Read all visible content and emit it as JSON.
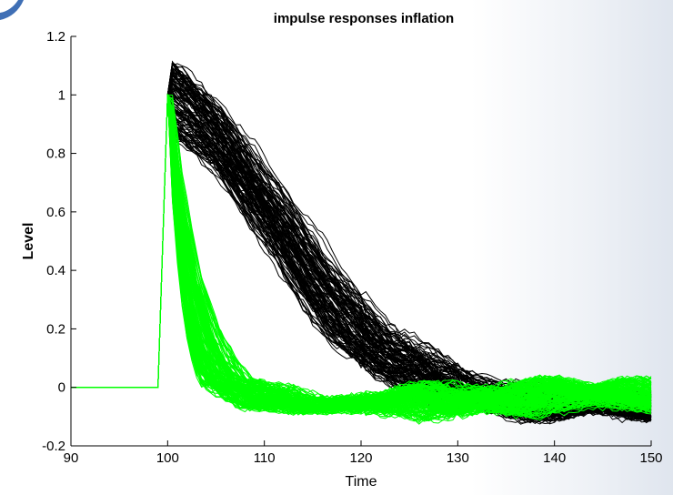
{
  "colors": {
    "black_series": "#000000",
    "green_series": "#00ff00",
    "background": "#ffffff"
  },
  "chart_data": {
    "type": "line",
    "title": "impulse responses inflation",
    "xlabel": "Time",
    "ylabel": "Level",
    "xlim": [
      90,
      150
    ],
    "ylim": [
      -0.2,
      1.2
    ],
    "xticks": [
      "90",
      "100",
      "110",
      "120",
      "130",
      "140",
      "150"
    ],
    "yticks": [
      "-0.2",
      "0",
      "0.2",
      "0.4",
      "0.6",
      "0.8",
      "1",
      "1.2"
    ],
    "grid": false,
    "legend": "none",
    "series": [
      {
        "color": "black",
        "x": [
          90,
          99,
          100,
          102,
          105,
          110,
          115,
          120,
          125,
          130,
          140,
          150
        ],
        "y": [
          0,
          0,
          1.0,
          0.95,
          0.85,
          0.62,
          0.36,
          0.16,
          0.05,
          -0.02,
          -0.07,
          -0.06
        ]
      },
      {
        "color": "green",
        "x": [
          90,
          99,
          100,
          101,
          102,
          103,
          104,
          105,
          110,
          115,
          120,
          125,
          130,
          140,
          150
        ],
        "y": [
          0,
          0,
          1.0,
          0.6,
          0.35,
          0.18,
          0.08,
          0.02,
          -0.05,
          -0.07,
          -0.06,
          -0.05,
          -0.04,
          -0.02,
          -0.01
        ]
      }
    ]
  }
}
